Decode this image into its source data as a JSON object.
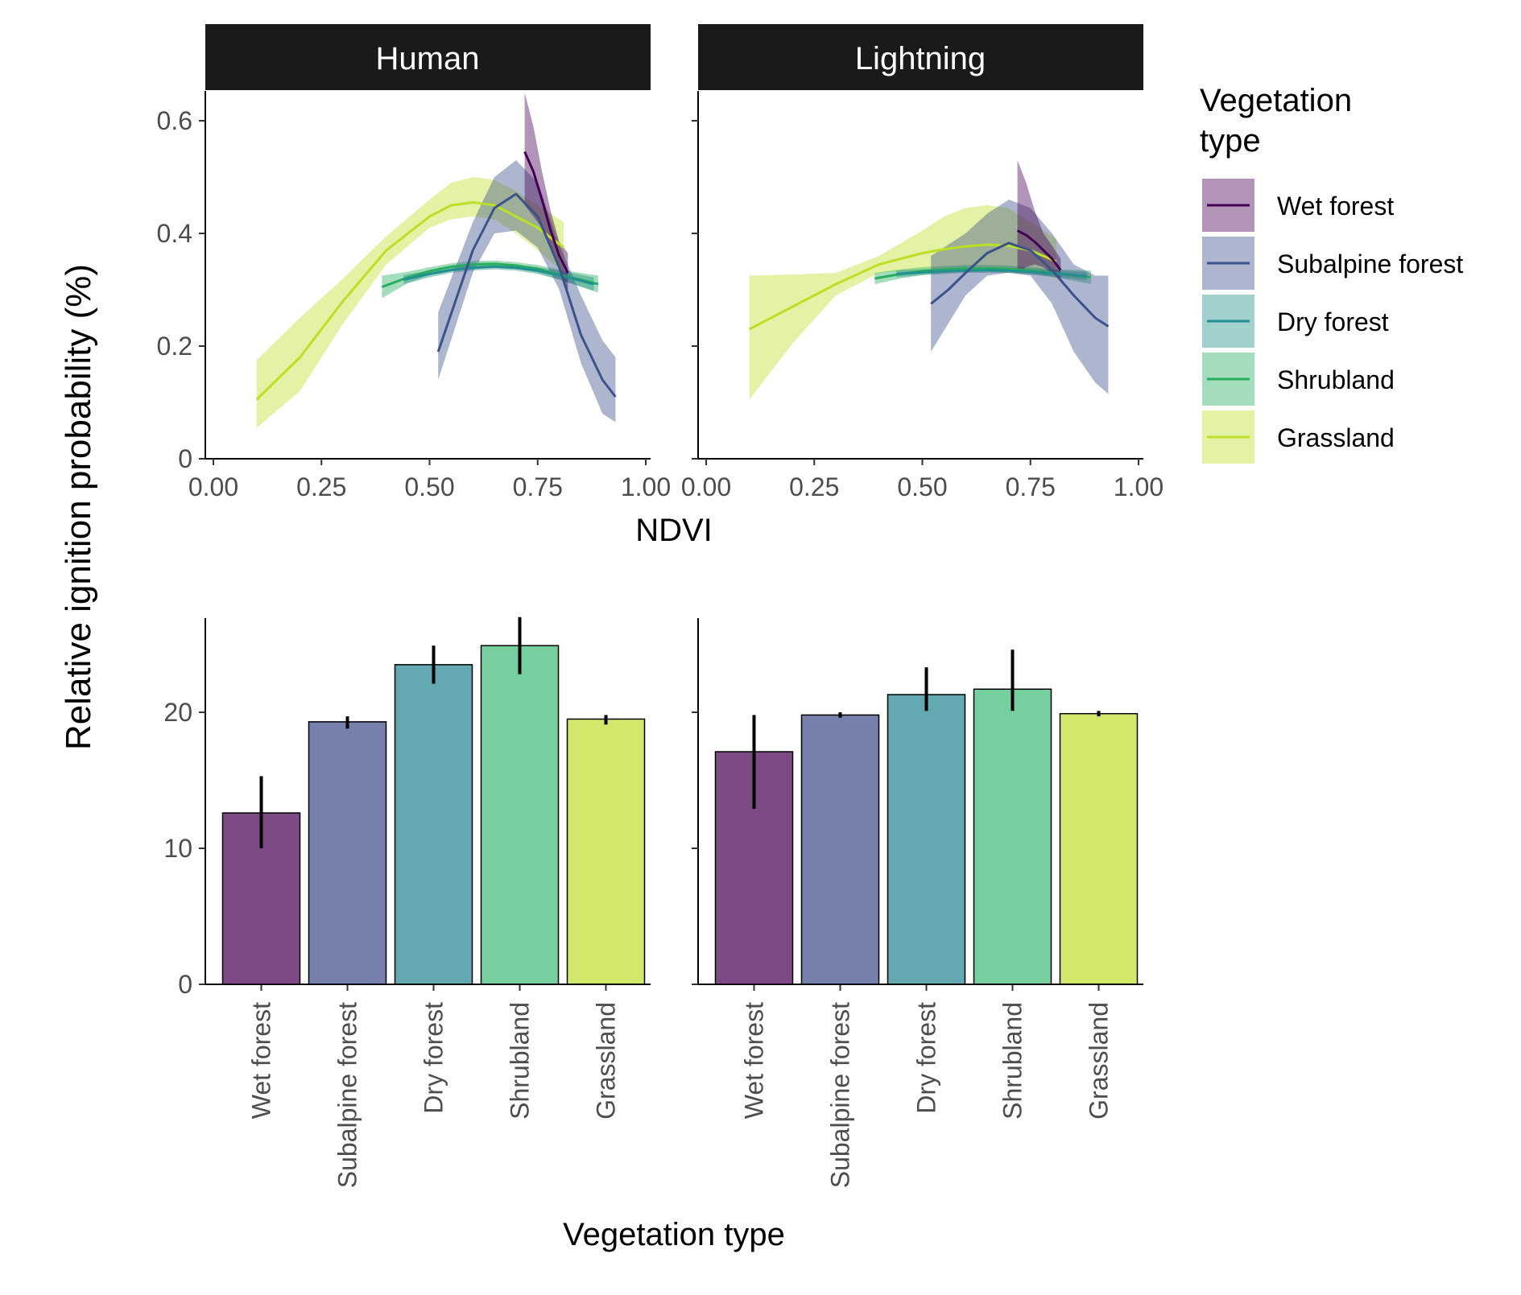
{
  "figure": {
    "y_axis_title": "Relative ignition probability (%)",
    "legend_title_line1": "Vegetation",
    "legend_title_line2": "type"
  },
  "legend": [
    {
      "label": "Wet forest",
      "color": "#440154"
    },
    {
      "label": "Subalpine forest",
      "color": "#3b528b"
    },
    {
      "label": "Dry forest",
      "color": "#21908c"
    },
    {
      "label": "Shrubland",
      "color": "#27ad5f"
    },
    {
      "label": "Grassland",
      "color": "#bddf26"
    }
  ],
  "chart_data": [
    {
      "type": "line",
      "panel": "Human",
      "strip_label": "Human",
      "xlabel": "NDVI",
      "xlim": [
        0,
        1
      ],
      "ylim": [
        0,
        0.65
      ],
      "xticks": [
        "0.00",
        "0.25",
        "0.50",
        "0.75",
        "1.00"
      ],
      "yticks": [
        "0",
        "0.2",
        "0.4",
        "0.6"
      ],
      "series": [
        {
          "name": "Grassland",
          "color": "#bddf26",
          "x": [
            0.1,
            0.2,
            0.3,
            0.4,
            0.5,
            0.55,
            0.6,
            0.65,
            0.7,
            0.75,
            0.81
          ],
          "y": [
            0.105,
            0.18,
            0.28,
            0.37,
            0.43,
            0.45,
            0.455,
            0.45,
            0.43,
            0.41,
            0.375
          ],
          "lo": [
            0.055,
            0.12,
            0.24,
            0.345,
            0.41,
            0.425,
            0.43,
            0.425,
            0.4,
            0.37,
            0.33
          ],
          "hi": [
            0.175,
            0.25,
            0.32,
            0.395,
            0.46,
            0.49,
            0.5,
            0.495,
            0.475,
            0.45,
            0.42
          ]
        },
        {
          "name": "Shrubland",
          "color": "#27ad5f",
          "x": [
            0.39,
            0.45,
            0.5,
            0.55,
            0.6,
            0.65,
            0.7,
            0.75,
            0.8,
            0.89
          ],
          "y": [
            0.305,
            0.322,
            0.333,
            0.341,
            0.345,
            0.346,
            0.343,
            0.337,
            0.327,
            0.31
          ],
          "lo": [
            0.285,
            0.312,
            0.326,
            0.335,
            0.339,
            0.34,
            0.337,
            0.33,
            0.318,
            0.295
          ],
          "hi": [
            0.325,
            0.332,
            0.34,
            0.347,
            0.351,
            0.352,
            0.349,
            0.344,
            0.336,
            0.325
          ]
        },
        {
          "name": "Dry forest",
          "color": "#21908c",
          "x": [
            0.44,
            0.5,
            0.55,
            0.6,
            0.65,
            0.7,
            0.75,
            0.8,
            0.88
          ],
          "y": [
            0.318,
            0.328,
            0.335,
            0.339,
            0.341,
            0.339,
            0.334,
            0.326,
            0.31
          ],
          "lo": [
            0.31,
            0.322,
            0.33,
            0.334,
            0.336,
            0.334,
            0.328,
            0.318,
            0.298
          ],
          "hi": [
            0.326,
            0.334,
            0.34,
            0.344,
            0.346,
            0.344,
            0.34,
            0.334,
            0.322
          ]
        },
        {
          "name": "Subalpine forest",
          "color": "#3b528b",
          "x": [
            0.52,
            0.56,
            0.6,
            0.65,
            0.7,
            0.75,
            0.8,
            0.85,
            0.9,
            0.93
          ],
          "y": [
            0.19,
            0.28,
            0.37,
            0.445,
            0.47,
            0.43,
            0.34,
            0.22,
            0.14,
            0.11
          ],
          "lo": [
            0.14,
            0.235,
            0.33,
            0.4,
            0.405,
            0.375,
            0.3,
            0.17,
            0.08,
            0.065
          ],
          "hi": [
            0.26,
            0.34,
            0.42,
            0.5,
            0.53,
            0.49,
            0.38,
            0.29,
            0.21,
            0.18
          ]
        },
        {
          "name": "Wet forest",
          "color": "#440154",
          "x": [
            0.72,
            0.74,
            0.76,
            0.78,
            0.8,
            0.82
          ],
          "y": [
            0.545,
            0.51,
            0.46,
            0.405,
            0.36,
            0.33
          ],
          "lo": [
            0.45,
            0.43,
            0.41,
            0.375,
            0.34,
            0.3
          ],
          "hi": [
            0.65,
            0.59,
            0.51,
            0.44,
            0.385,
            0.365
          ]
        }
      ]
    },
    {
      "type": "line",
      "panel": "Lightning",
      "strip_label": "Lightning",
      "xlabel": "NDVI",
      "xlim": [
        0,
        1
      ],
      "ylim": [
        0,
        0.65
      ],
      "xticks": [
        "0.00",
        "0.25",
        "0.50",
        "0.75",
        "1.00"
      ],
      "series": [
        {
          "name": "Grassland",
          "color": "#bddf26",
          "x": [
            0.1,
            0.2,
            0.3,
            0.4,
            0.5,
            0.55,
            0.6,
            0.65,
            0.7,
            0.75,
            0.81
          ],
          "y": [
            0.23,
            0.27,
            0.31,
            0.345,
            0.365,
            0.372,
            0.377,
            0.38,
            0.378,
            0.37,
            0.35
          ],
          "lo": [
            0.105,
            0.205,
            0.29,
            0.33,
            0.335,
            0.338,
            0.34,
            0.34,
            0.338,
            0.333,
            0.32
          ],
          "hi": [
            0.325,
            0.327,
            0.33,
            0.36,
            0.405,
            0.43,
            0.445,
            0.45,
            0.445,
            0.42,
            0.39
          ]
        },
        {
          "name": "Shrubland",
          "color": "#27ad5f",
          "x": [
            0.39,
            0.45,
            0.5,
            0.55,
            0.6,
            0.65,
            0.7,
            0.75,
            0.8,
            0.89
          ],
          "y": [
            0.32,
            0.328,
            0.333,
            0.336,
            0.338,
            0.338,
            0.337,
            0.334,
            0.33,
            0.322
          ],
          "lo": [
            0.31,
            0.32,
            0.326,
            0.33,
            0.332,
            0.332,
            0.331,
            0.328,
            0.323,
            0.31
          ],
          "hi": [
            0.33,
            0.336,
            0.34,
            0.342,
            0.344,
            0.344,
            0.343,
            0.34,
            0.337,
            0.334
          ]
        },
        {
          "name": "Dry forest",
          "color": "#21908c",
          "x": [
            0.44,
            0.5,
            0.55,
            0.6,
            0.65,
            0.7,
            0.75,
            0.8,
            0.88
          ],
          "y": [
            0.328,
            0.331,
            0.333,
            0.334,
            0.335,
            0.334,
            0.332,
            0.329,
            0.324
          ],
          "lo": [
            0.322,
            0.326,
            0.328,
            0.33,
            0.33,
            0.33,
            0.327,
            0.323,
            0.317
          ],
          "hi": [
            0.334,
            0.336,
            0.338,
            0.339,
            0.34,
            0.339,
            0.337,
            0.335,
            0.331
          ]
        },
        {
          "name": "Subalpine forest",
          "color": "#3b528b",
          "x": [
            0.52,
            0.56,
            0.6,
            0.65,
            0.7,
            0.75,
            0.8,
            0.85,
            0.9,
            0.93
          ],
          "y": [
            0.275,
            0.3,
            0.33,
            0.365,
            0.383,
            0.37,
            0.335,
            0.29,
            0.25,
            0.235
          ],
          "lo": [
            0.19,
            0.24,
            0.29,
            0.325,
            0.33,
            0.325,
            0.275,
            0.19,
            0.135,
            0.115
          ],
          "hi": [
            0.36,
            0.38,
            0.4,
            0.435,
            0.46,
            0.445,
            0.4,
            0.345,
            0.325,
            0.325
          ]
        },
        {
          "name": "Wet forest",
          "color": "#440154",
          "x": [
            0.72,
            0.74,
            0.76,
            0.78,
            0.8,
            0.82
          ],
          "y": [
            0.405,
            0.397,
            0.385,
            0.37,
            0.355,
            0.335
          ],
          "lo": [
            0.33,
            0.34,
            0.345,
            0.34,
            0.33,
            0.315
          ],
          "hi": [
            0.53,
            0.49,
            0.44,
            0.4,
            0.378,
            0.355
          ]
        }
      ]
    },
    {
      "type": "bar",
      "panel": "Human",
      "xlabel": "Vegetation type",
      "ylim": [
        0,
        27
      ],
      "yticks": [
        "0",
        "10",
        "20"
      ],
      "categories": [
        "Wet forest",
        "Subalpine forest",
        "Dry forest",
        "Shrubland",
        "Grassland"
      ],
      "values": [
        12.6,
        19.3,
        23.5,
        24.9,
        19.5
      ],
      "err_lo": [
        10.0,
        18.8,
        22.1,
        22.8,
        19.1
      ],
      "err_hi": [
        15.3,
        19.7,
        24.9,
        27.0,
        19.8
      ],
      "colors": [
        "#7e4a85",
        "#777fad",
        "#64a9b1",
        "#77cf9f",
        "#d1e86a"
      ]
    },
    {
      "type": "bar",
      "panel": "Lightning",
      "xlabel": "Vegetation type",
      "ylim": [
        0,
        27
      ],
      "categories": [
        "Wet forest",
        "Subalpine forest",
        "Dry forest",
        "Shrubland",
        "Grassland"
      ],
      "values": [
        17.1,
        19.8,
        21.3,
        21.7,
        19.9
      ],
      "err_lo": [
        12.9,
        19.6,
        20.1,
        20.1,
        19.7
      ],
      "err_hi": [
        19.8,
        20.0,
        23.3,
        24.6,
        20.1
      ],
      "colors": [
        "#7e4a85",
        "#777fad",
        "#64a9b1",
        "#77cf9f",
        "#d1e86a"
      ]
    }
  ]
}
